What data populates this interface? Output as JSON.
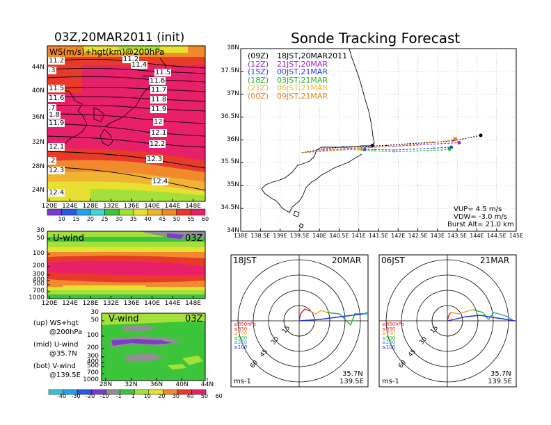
{
  "colors": {
    "ws": [
      "#7a3ec7",
      "#2a58e0",
      "#28a0e6",
      "#40d6d6",
      "#3cc43a",
      "#a4e03a",
      "#e8e030",
      "#f0b432",
      "#f08a2c",
      "#e83a2a",
      "#e8206a"
    ],
    "uv": [
      "#3ac0d8",
      "#28a0e6",
      "#2a58e0",
      "#7a3ec7",
      "#909090",
      "#3cc43a",
      "#a4e03a",
      "#e8e030",
      "#f08a2c",
      "#e83a2a",
      "#e8206a"
    ],
    "launch_colors": [
      "#000000",
      "#a020c0",
      "#2040e0",
      "#20b020",
      "#e8c020",
      "#e88020"
    ],
    "rose_colors": [
      "#e02020",
      "#f0a020",
      "#20b020",
      "#20a0e0",
      "#2030e0"
    ]
  },
  "top_left": {
    "title": "03Z,20MAR2011 (init)",
    "label": "WS(m/s)+hgt(km)@200hPa",
    "lat_labels": [
      "44N",
      "40N",
      "36N",
      "32N",
      "28N",
      "24N"
    ],
    "lon_labels": [
      "120E",
      "124E",
      "128E",
      "132E",
      "136E",
      "140E",
      "144E",
      "148E"
    ],
    "contour_labels": [
      "11.2",
      "11.4",
      "11.5",
      "11.6",
      "11.7",
      "11.8",
      "11.9",
      "12",
      "12.1",
      "12.2",
      "12.3",
      "12.4"
    ],
    "left_edge_labels": [
      "11.2",
      ".3",
      "11.5",
      "11.6",
      ".7",
      "1.8",
      "11.9",
      "12.1",
      ".2",
      "12.3",
      "12.4"
    ],
    "colorbar_ticks": [
      "10",
      "15",
      "20",
      "25",
      "30",
      "35",
      "40",
      "45",
      "50",
      "55",
      "60"
    ]
  },
  "uwind": {
    "label": "U-wind",
    "time": "03Z",
    "y_labels": [
      "30",
      "50",
      "100",
      "200",
      "300",
      "400",
      "500",
      "700",
      "1000"
    ],
    "lon_labels": [
      "120E",
      "124E",
      "128E",
      "132E",
      "136E",
      "140E",
      "144E",
      "148E"
    ]
  },
  "vwind": {
    "label": "V-wind",
    "time": "03Z",
    "y_labels": [
      "30",
      "50",
      "100",
      "200",
      "300",
      "400",
      "500",
      "700",
      "1000"
    ],
    "lat_labels": [
      "28N",
      "32N",
      "36N",
      "40N",
      "44N"
    ],
    "colorbar_ticks": [
      "-40",
      "-30",
      "-20",
      "-10",
      "-1",
      "1",
      "10",
      "20",
      "30",
      "40",
      "50",
      "60"
    ]
  },
  "legend_text": {
    "up": "(up) WS+hgt",
    "up2": "@200hPa",
    "mid": "(mid) U-wind",
    "mid2": "@35.7N",
    "bot": "(bot) V-wind",
    "bot2": "@139.5E"
  },
  "forecast": {
    "title": "Sonde Tracking Forecast",
    "launches": [
      {
        "utc": "(09Z)",
        "jst": "18JST,20MAR2011"
      },
      {
        "utc": "(12Z)",
        "jst": "21JST,20MAR"
      },
      {
        "utc": "(15Z)",
        "jst": "00JST,21MAR"
      },
      {
        "utc": "(18Z)",
        "jst": "03JST,21MAR"
      },
      {
        "utc": "(21Z)",
        "jst": "06JST,21MAR"
      },
      {
        "utc": "(00Z)",
        "jst": "09JST,21MAR"
      }
    ],
    "params": {
      "vup": "VUP= 4.5 m/s",
      "vdw": "VDW= -3.0 m/s",
      "burst": "Burst Alt= 21.0 km"
    },
    "lat_labels": [
      "38N",
      "37.5N",
      "37N",
      "36.5N",
      "36N",
      "35.5N",
      "35N",
      "34.5N",
      "34N"
    ],
    "lon_labels": [
      "138E",
      "138.5E",
      "139E",
      "139.5E",
      "140E",
      "140.5E",
      "141E",
      "141.5E",
      "142E",
      "142.5E",
      "143E",
      "143.5E",
      "144E",
      "144.5E",
      "145E"
    ]
  },
  "chart_data": [
    {
      "type": "heatmap",
      "title": "03Z,20MAR2011 (init)",
      "variable": "WS(m/s)+hgt(km)@200hPa",
      "x_range": [
        "120E",
        "148E"
      ],
      "y_range": [
        "22N",
        "47N"
      ],
      "height_contours_km": [
        11.2,
        11.4,
        11.5,
        11.6,
        11.7,
        11.8,
        11.9,
        12,
        12.1,
        12.2,
        12.3,
        12.4
      ],
      "colorbar": [
        10,
        15,
        20,
        25,
        30,
        35,
        40,
        45,
        50,
        55,
        60
      ]
    },
    {
      "type": "heatmap",
      "title": "U-wind",
      "x_range": [
        "120E",
        "148E"
      ],
      "y_ticks_hPa": [
        30,
        50,
        100,
        200,
        300,
        400,
        500,
        700,
        1000
      ]
    },
    {
      "type": "heatmap",
      "title": "V-wind",
      "x_range": [
        "28N",
        "44N"
      ],
      "y_ticks_hPa": [
        30,
        50,
        100,
        200,
        300,
        400,
        500,
        700,
        1000
      ],
      "colorbar": [
        -40,
        -30,
        -20,
        -10,
        -1,
        1,
        10,
        20,
        30,
        40,
        50,
        60
      ]
    },
    {
      "type": "line",
      "title": "Sonde Tracking Forecast",
      "x_range": [
        138,
        145
      ],
      "y_range": [
        34,
        38
      ],
      "series": [
        {
          "name": "(09Z) 18JST,20MAR2011",
          "points": [
            [
              139.55,
              35.72
            ],
            [
              140.1,
              35.8
            ],
            [
              140.6,
              35.85
            ],
            [
              141.2,
              35.86
            ],
            [
              141.7,
              35.88
            ],
            [
              142.3,
              35.92
            ],
            [
              142.9,
              35.95
            ],
            [
              143.4,
              35.98
            ],
            [
              144.1,
              36.1
            ]
          ],
          "end": [
            144.1,
            36.1
          ]
        },
        {
          "name": "(12Z) 21JST,20MAR",
          "points": [
            [
              139.55,
              35.72
            ],
            [
              140.2,
              35.78
            ],
            [
              140.8,
              35.82
            ],
            [
              141.3,
              35.84
            ],
            [
              141.9,
              35.86
            ],
            [
              142.5,
              35.89
            ],
            [
              143.1,
              35.92
            ],
            [
              143.55,
              35.94
            ]
          ],
          "end": [
            143.55,
            35.94
          ]
        },
        {
          "name": "(15Z) 00JST,21MAR",
          "points": [
            [
              139.55,
              35.72
            ],
            [
              140.2,
              35.76
            ],
            [
              140.8,
              35.8
            ],
            [
              141.4,
              35.79
            ],
            [
              141.9,
              35.78
            ],
            [
              142.4,
              35.8
            ],
            [
              142.9,
              35.82
            ],
            [
              143.35,
              35.84
            ]
          ],
          "end": [
            143.35,
            35.84
          ]
        },
        {
          "name": "(18Z) 03JST,21MAR",
          "points": [
            [
              139.55,
              35.72
            ],
            [
              140.2,
              35.76
            ],
            [
              140.8,
              35.79
            ],
            [
              141.4,
              35.76
            ],
            [
              141.9,
              35.74
            ],
            [
              142.5,
              35.76
            ],
            [
              143.1,
              35.78
            ],
            [
              143.3,
              35.8
            ]
          ],
          "end": [
            143.3,
            35.8
          ]
        },
        {
          "name": "(21Z) 06JST,21MAR",
          "points": [
            [
              139.55,
              35.72
            ],
            [
              140.1,
              35.76
            ],
            [
              140.6,
              35.79
            ],
            [
              141.0,
              35.8
            ]
          ],
          "end": [
            141.0,
            35.8
          ]
        },
        {
          "name": "(00Z) 09JST,21MAR",
          "points": [
            [
              139.55,
              35.72
            ],
            [
              140.2,
              35.76
            ],
            [
              140.8,
              35.8
            ],
            [
              141.6,
              35.85
            ],
            [
              142.4,
              35.9
            ],
            [
              143.1,
              35.96
            ],
            [
              143.45,
              36.02
            ]
          ],
          "end": [
            143.45,
            36.02
          ]
        }
      ]
    }
  ],
  "wind_roses": [
    {
      "time": "18JST",
      "date": "20MAR",
      "lat": "35.7N",
      "lon": "139.5E",
      "unit": "ms-1",
      "ring_labels": [
        "15",
        "30",
        "45",
        "60"
      ],
      "levels": [
        "≥850hPa",
        "≤850",
        "≤700",
        "≤500",
        "≤250",
        "≤100"
      ]
    },
    {
      "time": "06JST",
      "date": "21MAR",
      "lat": "35.7N",
      "lon": "139.5E",
      "unit": "ms-1",
      "ring_labels": [
        "15",
        "30",
        "45",
        "60"
      ],
      "levels": [
        "≥850hPa",
        "≤850",
        "≤700",
        "≤500",
        "≤250",
        "≤100"
      ]
    }
  ]
}
